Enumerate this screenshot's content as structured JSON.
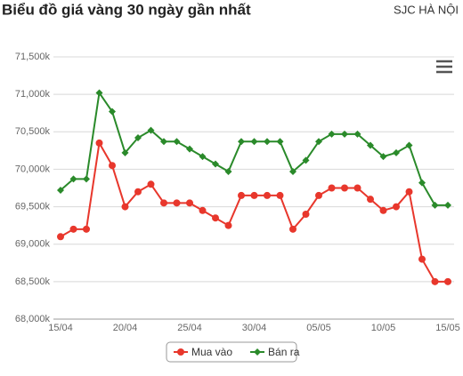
{
  "chart_data": {
    "type": "line",
    "title": "Biểu đồ giá vàng 30 ngày gần nhất",
    "subtitle": "SJC HÀ NỘI",
    "categories": [
      "15/04",
      null,
      null,
      null,
      null,
      "20/04",
      null,
      null,
      null,
      null,
      "25/04",
      null,
      null,
      null,
      null,
      "30/04",
      null,
      null,
      null,
      null,
      "05/05",
      null,
      null,
      null,
      null,
      "10/05",
      null,
      null,
      null,
      null,
      "15/05"
    ],
    "series": [
      {
        "name": "Mua vào",
        "color": "#e8372c",
        "values": [
          69100,
          69200,
          69200,
          70350,
          70050,
          69500,
          69700,
          69800,
          69550,
          69550,
          69550,
          69450,
          69350,
          69250,
          69650,
          69650,
          69650,
          69650,
          69200,
          69400,
          69650,
          69750,
          69750,
          69750,
          69600,
          69450,
          69500,
          69700,
          68800,
          68500,
          68500
        ]
      },
      {
        "name": "Bán ra",
        "color": "#2a8a2a",
        "values": [
          69720,
          69870,
          69870,
          71020,
          70770,
          70220,
          70420,
          70520,
          70370,
          70370,
          70270,
          70170,
          70070,
          69970,
          70370,
          70370,
          70370,
          70370,
          69970,
          70120,
          70370,
          70470,
          70470,
          70470,
          70320,
          70170,
          70220,
          70320,
          69820,
          69520,
          69520
        ]
      }
    ],
    "ylim": [
      68000,
      71500
    ],
    "yticks": [
      {
        "value": 68000,
        "label": "68,000k"
      },
      {
        "value": 68500,
        "label": "68,500k"
      },
      {
        "value": 69000,
        "label": "69,000k"
      },
      {
        "value": 69500,
        "label": "69,500k"
      },
      {
        "value": 70000,
        "label": "70,000k"
      },
      {
        "value": 70500,
        "label": "70,500k"
      },
      {
        "value": 71000,
        "label": "71,000k"
      },
      {
        "value": 71500,
        "label": "71,500k"
      }
    ],
    "grid": true
  }
}
